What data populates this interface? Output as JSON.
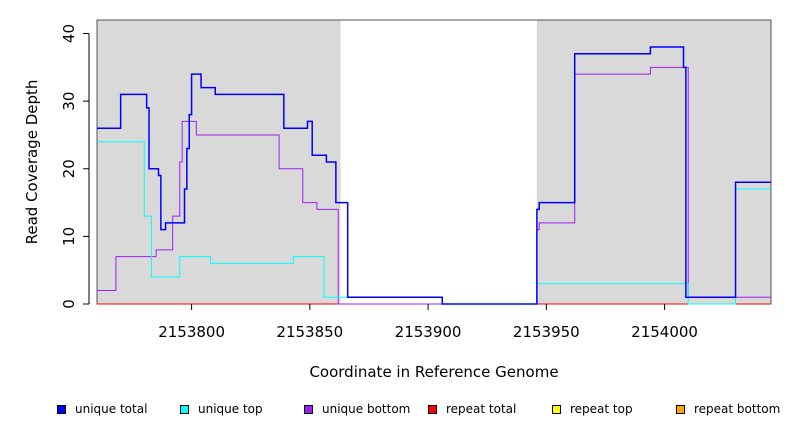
{
  "chart_data": {
    "type": "line",
    "step": true,
    "title": "",
    "xlabel": "Coordinate in Reference Genome",
    "ylabel": "Read Coverage Depth",
    "xlim": [
      2153760,
      2154045
    ],
    "ylim": [
      0,
      42
    ],
    "xticks": [
      2153800,
      2153850,
      2153900,
      2153950,
      2154000
    ],
    "xtick_labels": [
      "2153800",
      "2153850",
      "2153900",
      "2153950",
      "2154000"
    ],
    "yticks": [
      0,
      10,
      20,
      30,
      40
    ],
    "ytick_labels": [
      "0",
      "10",
      "20",
      "30",
      "40"
    ],
    "shaded_regions": [
      [
        2153760,
        2153863
      ],
      [
        2153946,
        2154045
      ]
    ],
    "shade_color": "#d9d9d9",
    "series": [
      {
        "name": "unique total",
        "color": "#0000ff",
        "points": [
          [
            2153760,
            26
          ],
          [
            2153770,
            26
          ],
          [
            2153770,
            31
          ],
          [
            2153781,
            31
          ],
          [
            2153781,
            29
          ],
          [
            2153782,
            29
          ],
          [
            2153782,
            20
          ],
          [
            2153786,
            20
          ],
          [
            2153786,
            19
          ],
          [
            2153787,
            19
          ],
          [
            2153787,
            11
          ],
          [
            2153789,
            11
          ],
          [
            2153789,
            12
          ],
          [
            2153797,
            12
          ],
          [
            2153797,
            17
          ],
          [
            2153798,
            17
          ],
          [
            2153798,
            23
          ],
          [
            2153799,
            23
          ],
          [
            2153799,
            28
          ],
          [
            2153800,
            28
          ],
          [
            2153800,
            34
          ],
          [
            2153804,
            34
          ],
          [
            2153804,
            32
          ],
          [
            2153810,
            32
          ],
          [
            2153810,
            31
          ],
          [
            2153839,
            31
          ],
          [
            2153839,
            26
          ],
          [
            2153849,
            26
          ],
          [
            2153849,
            27
          ],
          [
            2153851,
            27
          ],
          [
            2153851,
            22
          ],
          [
            2153857,
            22
          ],
          [
            2153857,
            21
          ],
          [
            2153861,
            21
          ],
          [
            2153861,
            15
          ],
          [
            2153866,
            15
          ],
          [
            2153866,
            1
          ],
          [
            2153906,
            1
          ],
          [
            2153906,
            0
          ],
          [
            2153946,
            0
          ],
          [
            2153946,
            14
          ],
          [
            2153947,
            14
          ],
          [
            2153947,
            15
          ],
          [
            2153962,
            15
          ],
          [
            2153962,
            37
          ],
          [
            2153994,
            37
          ],
          [
            2153994,
            38
          ],
          [
            2154008,
            38
          ],
          [
            2154008,
            35
          ],
          [
            2154009,
            35
          ],
          [
            2154009,
            1
          ],
          [
            2154030,
            1
          ],
          [
            2154030,
            18
          ],
          [
            2154045,
            18
          ]
        ]
      },
      {
        "name": "unique top",
        "color": "#00ffff",
        "points": [
          [
            2153760,
            24
          ],
          [
            2153780,
            24
          ],
          [
            2153780,
            13
          ],
          [
            2153783,
            13
          ],
          [
            2153783,
            4
          ],
          [
            2153795,
            4
          ],
          [
            2153795,
            7
          ],
          [
            2153808,
            7
          ],
          [
            2153808,
            6
          ],
          [
            2153843,
            6
          ],
          [
            2153843,
            7
          ],
          [
            2153856,
            7
          ],
          [
            2153856,
            1
          ],
          [
            2153906,
            1
          ],
          [
            2153906,
            0
          ],
          [
            2153946,
            0
          ],
          [
            2153946,
            3
          ],
          [
            2154010,
            3
          ],
          [
            2154010,
            0
          ],
          [
            2154030,
            0
          ],
          [
            2154030,
            17
          ],
          [
            2154045,
            17
          ]
        ]
      },
      {
        "name": "unique bottom",
        "color": "#a020f0",
        "points": [
          [
            2153760,
            2
          ],
          [
            2153768,
            2
          ],
          [
            2153768,
            7
          ],
          [
            2153785,
            7
          ],
          [
            2153785,
            8
          ],
          [
            2153792,
            8
          ],
          [
            2153792,
            13
          ],
          [
            2153795,
            13
          ],
          [
            2153795,
            21
          ],
          [
            2153796,
            21
          ],
          [
            2153796,
            27
          ],
          [
            2153802,
            27
          ],
          [
            2153802,
            25
          ],
          [
            2153837,
            25
          ],
          [
            2153837,
            20
          ],
          [
            2153847,
            20
          ],
          [
            2153847,
            15
          ],
          [
            2153853,
            15
          ],
          [
            2153853,
            14
          ],
          [
            2153862,
            14
          ],
          [
            2153862,
            0
          ],
          [
            2153946,
            0
          ],
          [
            2153946,
            11
          ],
          [
            2153947,
            11
          ],
          [
            2153947,
            12
          ],
          [
            2153962,
            12
          ],
          [
            2153962,
            34
          ],
          [
            2153994,
            34
          ],
          [
            2153994,
            35
          ],
          [
            2154010,
            35
          ],
          [
            2154010,
            1
          ],
          [
            2154045,
            1
          ]
        ]
      },
      {
        "name": "repeat total",
        "color": "#ff0000",
        "points": [
          [
            2153760,
            0
          ],
          [
            2154045,
            0
          ]
        ]
      },
      {
        "name": "repeat top",
        "color": "#ffff00",
        "points": [
          [
            2153760,
            0
          ],
          [
            2154045,
            0
          ]
        ]
      },
      {
        "name": "repeat bottom",
        "color": "#ffa500",
        "points": [
          [
            2153760,
            0
          ],
          [
            2154045,
            0
          ]
        ]
      }
    ],
    "legend": {
      "placement": "bottom",
      "items": [
        {
          "label": "unique total",
          "color": "#0000ff"
        },
        {
          "label": "unique top",
          "color": "#00ffff"
        },
        {
          "label": "unique bottom",
          "color": "#a020f0"
        },
        {
          "label": "repeat total",
          "color": "#ff0000"
        },
        {
          "label": "repeat top",
          "color": "#ffff00"
        },
        {
          "label": "repeat bottom",
          "color": "#ffa500"
        }
      ]
    }
  }
}
